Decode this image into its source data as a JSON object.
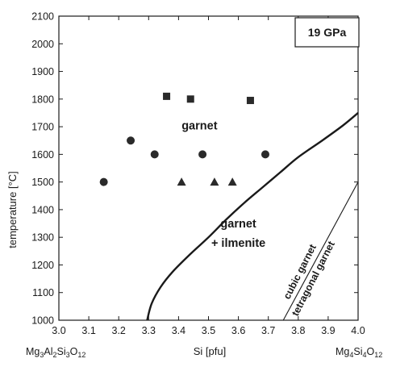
{
  "chart_data": {
    "type": "scatter",
    "xlabel": "Si [pfu]",
    "ylabel": "temperature [°C]",
    "xlim": [
      3.0,
      4.0
    ],
    "ylim": [
      1000,
      2100
    ],
    "x_ticks": [
      3.0,
      3.1,
      3.2,
      3.3,
      3.4,
      3.5,
      3.6,
      3.7,
      3.8,
      3.9,
      4.0
    ],
    "x_tick_labels": [
      "3.0",
      "3.1",
      "3.2",
      "3.3",
      "3.4",
      "3.5",
      "3.6",
      "3.7",
      "3.8",
      "3.9",
      "4.0"
    ],
    "y_ticks": [
      1000,
      1100,
      1200,
      1300,
      1400,
      1500,
      1600,
      1700,
      1800,
      1900,
      2000,
      2100
    ],
    "y_tick_labels": [
      "1000",
      "1100",
      "1200",
      "1300",
      "1400",
      "1500",
      "1600",
      "1700",
      "1800",
      "1900",
      "2000",
      "2100"
    ],
    "grid": false,
    "pressure_label": "19 GPa",
    "composition_labels": {
      "left": {
        "base": "Mg",
        "s1": "3",
        "mid1": "Al",
        "s2": "2",
        "mid2": "Si",
        "s3": "3",
        "mid3": "O",
        "s4": "12"
      },
      "right": {
        "base": "Mg",
        "s1": "4",
        "mid1": "Si",
        "s2": "4",
        "mid2": "O",
        "s3": "12"
      }
    },
    "series": [
      {
        "marker": "circle",
        "points": [
          [
            3.15,
            1500
          ],
          [
            3.24,
            1650
          ],
          [
            3.32,
            1600
          ],
          [
            3.48,
            1600
          ],
          [
            3.69,
            1600
          ]
        ]
      },
      {
        "marker": "square",
        "points": [
          [
            3.36,
            1810
          ],
          [
            3.44,
            1800
          ],
          [
            3.64,
            1795
          ]
        ]
      },
      {
        "marker": "triangle",
        "points": [
          [
            3.41,
            1500
          ],
          [
            3.52,
            1500
          ],
          [
            3.58,
            1500
          ]
        ]
      }
    ],
    "boundaries": [
      {
        "style": "thick",
        "points": [
          [
            3.295,
            1000
          ],
          [
            3.31,
            1060
          ],
          [
            3.34,
            1120
          ],
          [
            3.38,
            1175
          ],
          [
            3.44,
            1240
          ],
          [
            3.5,
            1300
          ],
          [
            3.56,
            1365
          ],
          [
            3.62,
            1425
          ],
          [
            3.68,
            1480
          ],
          [
            3.74,
            1535
          ],
          [
            3.8,
            1590
          ],
          [
            3.88,
            1650
          ],
          [
            3.95,
            1705
          ],
          [
            4.0,
            1750
          ]
        ]
      },
      {
        "style": "thin",
        "points": [
          [
            3.75,
            1000
          ],
          [
            4.0,
            1500
          ]
        ]
      }
    ],
    "region_labels": [
      {
        "text": "garnet",
        "x": 3.47,
        "y": 1690
      },
      {
        "text": "garnet",
        "x": 3.6,
        "y": 1335
      },
      {
        "text": "+ ilmenite",
        "x": 3.6,
        "y": 1265
      }
    ],
    "boundary_labels": [
      {
        "text": "cubic garnet",
        "x": 3.815,
        "y": 1170
      },
      {
        "text": "tetragonal garnet",
        "x": 3.86,
        "y": 1145
      }
    ],
    "marker_color": "#2a2a2a"
  }
}
